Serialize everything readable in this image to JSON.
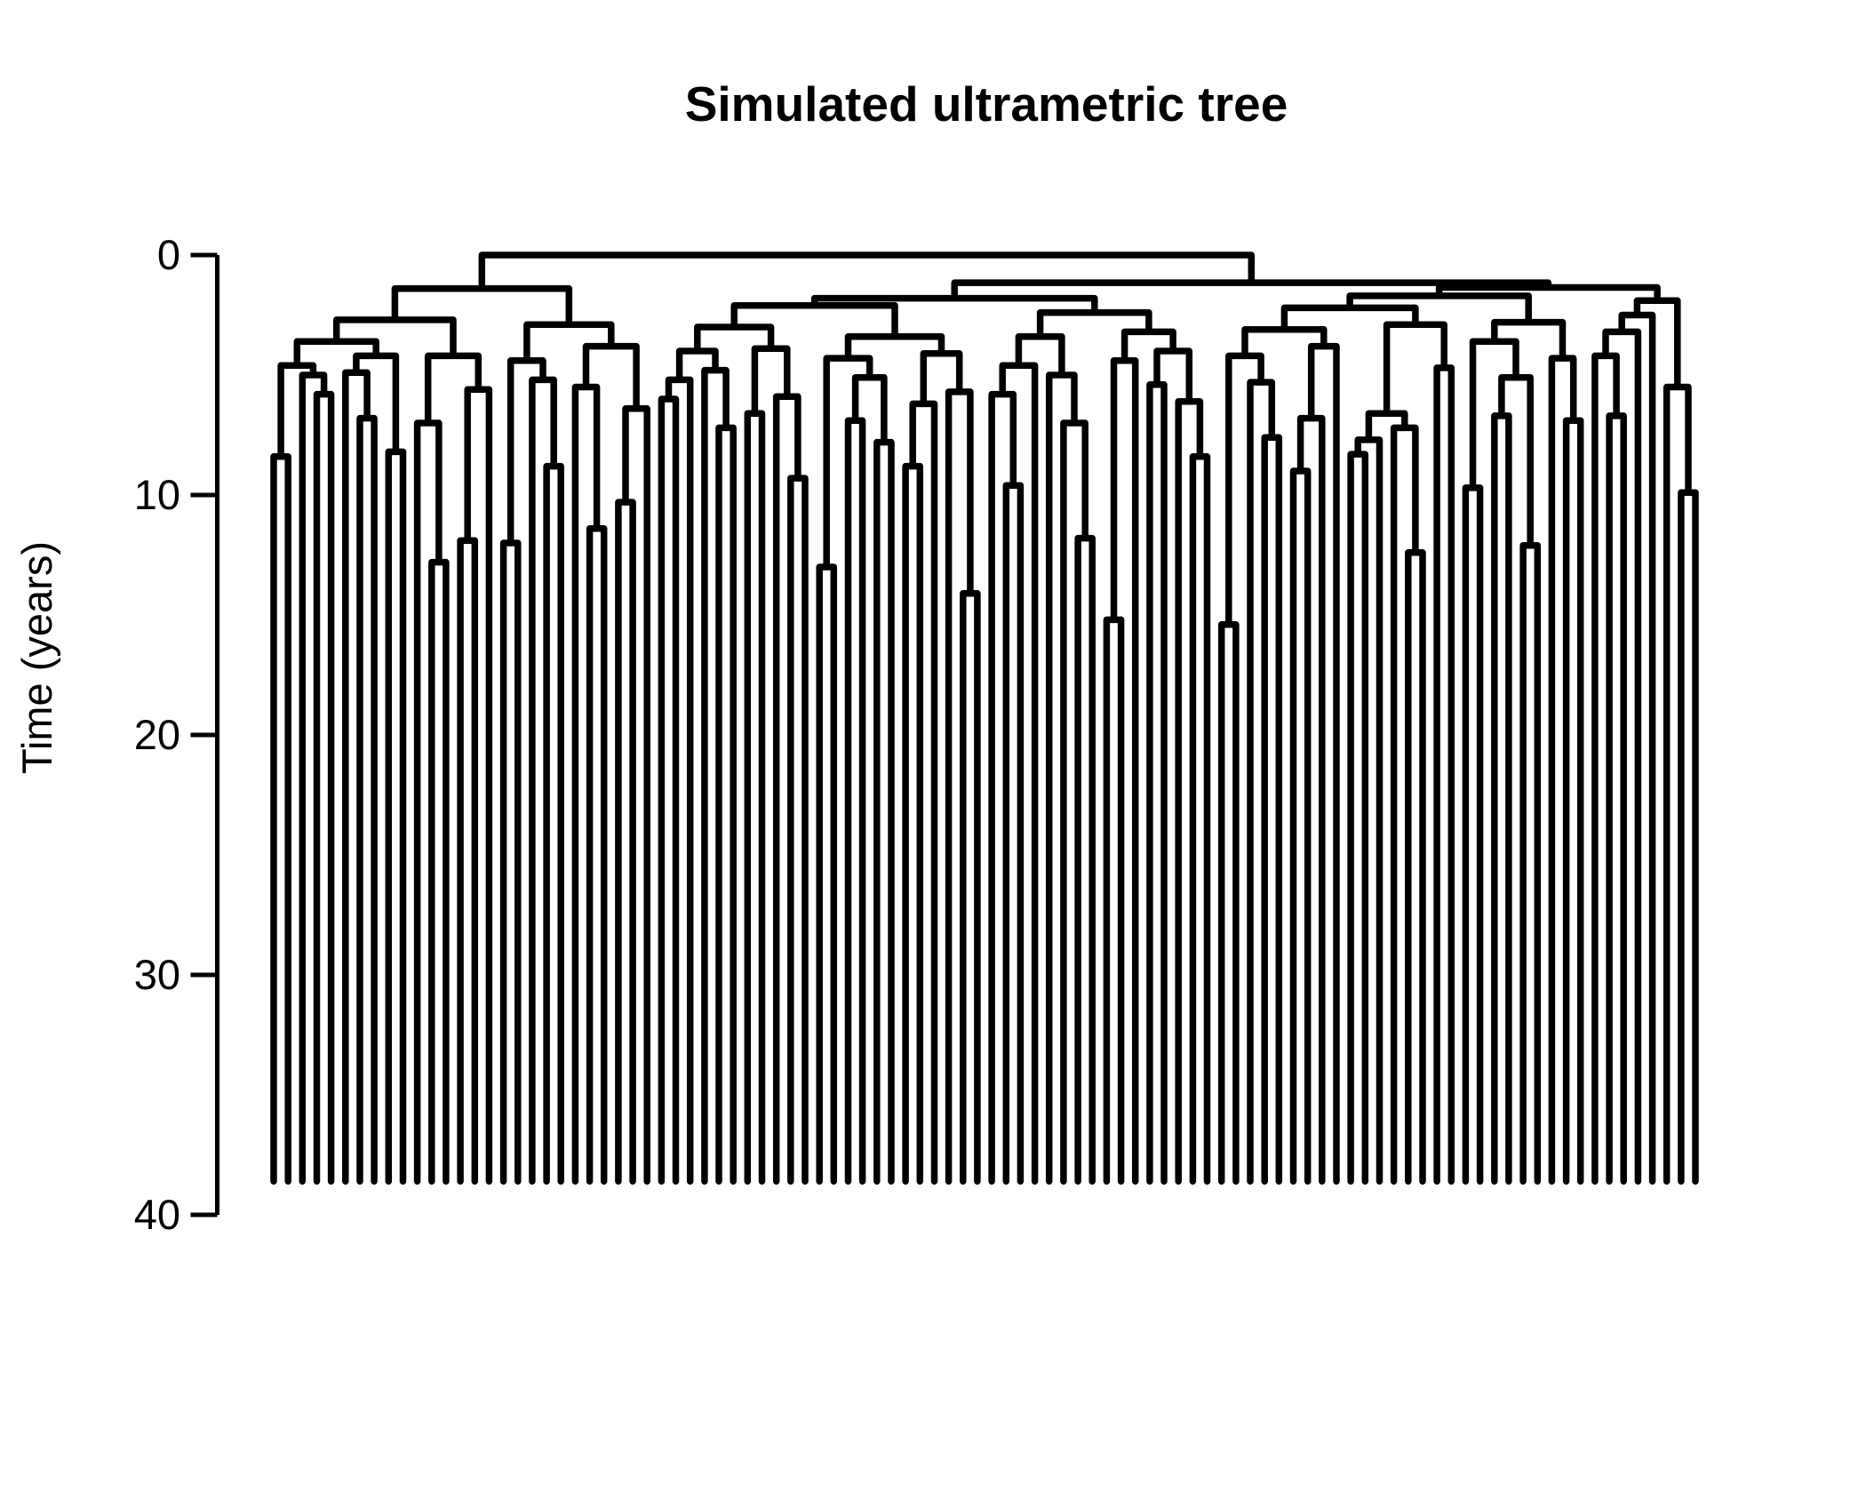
{
  "chart_data": {
    "type": "dendrogram",
    "title": "Simulated ultrametric tree",
    "ylabel": "Time (years)",
    "yticks": [
      0,
      10,
      20,
      30,
      40
    ],
    "ylim": [
      0,
      40
    ],
    "grid": false,
    "legend": "none",
    "orientation": "root-on-top",
    "n_tips": 100,
    "root_time_years": 0.0,
    "tip_time_years": 38.6,
    "line_color": "#000000",
    "background_color": "#ffffff",
    "tree_note": "Nested arrays [node_time_years, left_child, right_child]; 0 denotes a tip; all tips are contemporaneous at tip_time_years (ultrametric).",
    "tree": [
      0.0,
      [
        1.4,
        [
          2.7,
          [
            3.6,
            [
              4.6,
              [
                8.4,
                0,
                0
              ],
              [
                5.0,
                0,
                [
                  5.8,
                  0,
                  0
                ]
              ]
            ],
            [
              4.2,
              [
                4.9,
                0,
                [
                  6.8,
                  0,
                  0
                ]
              ],
              [
                8.2,
                0,
                0
              ]
            ]
          ],
          [
            4.2,
            [
              7.0,
              0,
              [
                12.8,
                0,
                0
              ]
            ],
            [
              5.6,
              [
                11.9,
                0,
                0
              ],
              0
            ]
          ]
        ],
        [
          2.9,
          [
            4.4,
            [
              12.0,
              0,
              0
            ],
            [
              5.2,
              0,
              [
                8.8,
                0,
                0
              ]
            ]
          ],
          [
            3.8,
            [
              5.5,
              0,
              [
                11.4,
                0,
                0
              ]
            ],
            [
              6.4,
              [
                10.3,
                0,
                0
              ],
              0
            ]
          ]
        ]
      ],
      [
        1.15,
        [
          1.8,
          [
            2.1,
            [
              3.0,
              [
                4.0,
                [
                  5.2,
                  [
                    6.0,
                    0,
                    0
                  ],
                  0
                ],
                [
                  4.8,
                  0,
                  [
                    7.2,
                    0,
                    0
                  ]
                ]
              ],
              [
                3.9,
                [
                  6.6,
                  0,
                  0
                ],
                [
                  5.9,
                  0,
                  [
                    9.3,
                    0,
                    0
                  ]
                ]
              ]
            ],
            [
              3.4,
              [
                4.3,
                [
                  13.0,
                  0,
                  0
                ],
                [
                  5.1,
                  [
                    6.9,
                    0,
                    0
                  ],
                  [
                    7.8,
                    0,
                    0
                  ]
                ]
              ],
              [
                4.1,
                [
                  6.2,
                  [
                    8.8,
                    0,
                    0
                  ],
                  0
                ],
                [
                  5.7,
                  0,
                  [
                    14.1,
                    0,
                    0
                  ]
                ]
              ]
            ]
          ],
          [
            2.4,
            [
              3.4,
              [
                4.6,
                [
                  5.8,
                  0,
                  [
                    9.6,
                    0,
                    0
                  ]
                ],
                0
              ],
              [
                5.0,
                0,
                [
                  7.0,
                  0,
                  [
                    11.8,
                    0,
                    0
                  ]
                ]
              ]
            ],
            [
              3.2,
              [
                4.4,
                [
                  15.2,
                  0,
                  0
                ],
                0
              ],
              [
                4.0,
                [
                  5.4,
                  0,
                  0
                ],
                [
                  6.1,
                  0,
                  [
                    8.4,
                    0,
                    0
                  ]
                ]
              ]
            ]
          ]
        ],
        [
          1.35,
          [
            1.7,
            [
              2.2,
              [
                3.1,
                [
                  4.2,
                  [
                    15.4,
                    0,
                    0
                  ],
                  [
                    5.3,
                    0,
                    [
                      7.6,
                      0,
                      0
                    ]
                  ]
                ],
                [
                  3.8,
                  [
                    6.8,
                    [
                      9.0,
                      0,
                      0
                    ],
                    0
                  ],
                  0
                ]
              ],
              [
                2.9,
                [
                  6.6,
                  [
                    7.7,
                    [
                      8.3,
                      0,
                      0
                    ],
                    0
                  ],
                  [
                    7.2,
                    0,
                    [
                      12.4,
                      0,
                      0
                    ]
                  ]
                ],
                [
                  4.7,
                  0,
                  0
                ]
              ]
            ],
            [
              2.8,
              [
                3.6,
                [
                  9.7,
                  0,
                  0
                ],
                [
                  5.1,
                  [
                    6.7,
                    0,
                    0
                  ],
                  [
                    12.1,
                    0,
                    0
                  ]
                ]
              ],
              [
                4.3,
                0,
                [
                  6.9,
                  0,
                  0
                ]
              ]
            ]
          ],
          [
            1.9,
            [
              2.5,
              [
                3.2,
                [
                  4.2,
                  0,
                  [
                    6.7,
                    0,
                    0
                  ]
                ],
                0
              ],
              0
            ],
            [
              5.5,
              0,
              [
                9.9,
                0,
                0
              ]
            ]
          ]
        ]
      ]
    ]
  }
}
